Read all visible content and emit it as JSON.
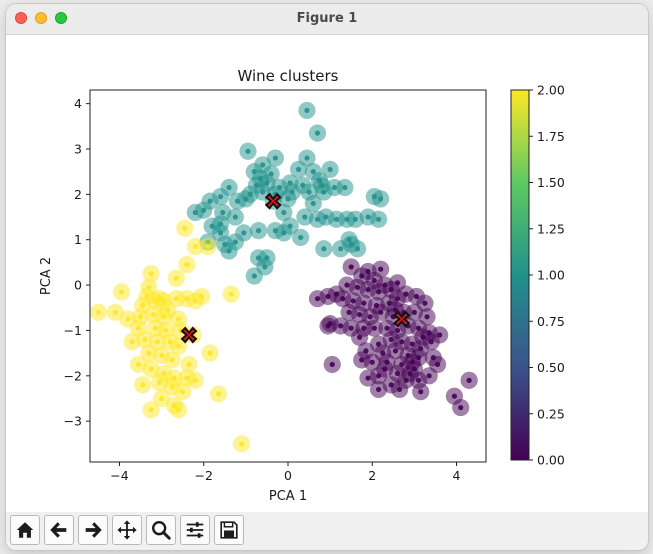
{
  "window": {
    "title": "Figure 1"
  },
  "toolbar": {
    "buttons": [
      {
        "name": "home-icon"
      },
      {
        "name": "back-arrow-icon"
      },
      {
        "name": "forward-arrow-icon"
      },
      {
        "name": "pan-icon"
      },
      {
        "name": "zoom-icon"
      },
      {
        "name": "configure-subplots-icon"
      },
      {
        "name": "save-icon"
      }
    ]
  },
  "chart_data": {
    "type": "scatter",
    "title": "Wine clusters",
    "xlabel": "PCA 1",
    "ylabel": "PCA 2",
    "xlim": [
      -4.7,
      4.7
    ],
    "ylim": [
      -3.9,
      4.3
    ],
    "xticks": [
      -4,
      -2,
      0,
      2,
      4
    ],
    "yticks": [
      -3,
      -2,
      -1,
      0,
      1,
      2,
      3,
      4
    ],
    "colormap": "viridis",
    "colorbar": {
      "min": 0.0,
      "max": 2.0,
      "ticks": [
        "0.00",
        "0.25",
        "0.50",
        "0.75",
        "1.00",
        "1.25",
        "1.50",
        "1.75",
        "2.00"
      ]
    },
    "colors": {
      "cluster_0": "#440154",
      "cluster_1": "#21918c",
      "cluster_2": "#fde725",
      "centroid": "#e8141a"
    },
    "centroids": [
      {
        "cluster": 0,
        "x": 2.7,
        "y": -0.75
      },
      {
        "cluster": 1,
        "x": -0.35,
        "y": 1.85
      },
      {
        "cluster": 2,
        "x": -2.35,
        "y": -1.1
      }
    ],
    "series": [
      {
        "cluster": 0,
        "points": [
          [
            1.5,
            0.4
          ],
          [
            1.9,
            0.3
          ],
          [
            2.2,
            0.35
          ],
          [
            1.75,
            0.2
          ],
          [
            2.05,
            0.1
          ],
          [
            2.3,
            0.0
          ],
          [
            1.4,
            0.0
          ],
          [
            1.65,
            -0.05
          ],
          [
            1.9,
            -0.1
          ],
          [
            2.15,
            -0.15
          ],
          [
            2.45,
            -0.1
          ],
          [
            1.15,
            -0.2
          ],
          [
            0.7,
            -0.3
          ],
          [
            0.95,
            -0.25
          ],
          [
            1.3,
            -0.3
          ],
          [
            1.55,
            -0.35
          ],
          [
            1.8,
            -0.4
          ],
          [
            2.1,
            -0.45
          ],
          [
            2.4,
            -0.4
          ],
          [
            2.6,
            -0.3
          ],
          [
            2.8,
            -0.2
          ],
          [
            3.05,
            -0.25
          ],
          [
            1.45,
            -0.6
          ],
          [
            1.7,
            -0.65
          ],
          [
            1.95,
            -0.7
          ],
          [
            2.2,
            -0.6
          ],
          [
            2.5,
            -0.7
          ],
          [
            2.75,
            -0.6
          ],
          [
            3.0,
            -0.6
          ],
          [
            3.3,
            -0.7
          ],
          [
            1.0,
            -0.85
          ],
          [
            1.25,
            -0.9
          ],
          [
            1.5,
            -0.95
          ],
          [
            1.8,
            -0.95
          ],
          [
            2.05,
            -0.95
          ],
          [
            2.35,
            -0.95
          ],
          [
            2.6,
            -1.0
          ],
          [
            2.85,
            -0.9
          ],
          [
            3.1,
            -0.95
          ],
          [
            3.35,
            -1.05
          ],
          [
            3.6,
            -1.1
          ],
          [
            3.4,
            -1.25
          ],
          [
            2.15,
            -1.3
          ],
          [
            2.45,
            -1.2
          ],
          [
            2.7,
            -1.25
          ],
          [
            2.95,
            -1.3
          ],
          [
            3.15,
            -1.4
          ],
          [
            1.85,
            -1.45
          ],
          [
            2.25,
            -1.5
          ],
          [
            2.55,
            -1.45
          ],
          [
            2.85,
            -1.55
          ],
          [
            3.1,
            -1.6
          ],
          [
            3.45,
            -1.6
          ],
          [
            2.0,
            -1.7
          ],
          [
            2.35,
            -1.7
          ],
          [
            2.7,
            -1.75
          ],
          [
            2.95,
            -1.7
          ],
          [
            1.05,
            -1.75
          ],
          [
            3.55,
            -1.75
          ],
          [
            2.3,
            -1.85
          ],
          [
            2.6,
            -1.95
          ],
          [
            2.9,
            -1.95
          ],
          [
            3.35,
            -2.0
          ],
          [
            1.9,
            -2.05
          ],
          [
            2.15,
            -2.0
          ],
          [
            2.8,
            -2.1
          ],
          [
            3.1,
            -2.1
          ],
          [
            4.3,
            -2.1
          ],
          [
            2.65,
            -2.3
          ],
          [
            3.15,
            -2.35
          ],
          [
            2.15,
            -2.3
          ],
          [
            3.95,
            -2.45
          ],
          [
            4.1,
            -2.7
          ],
          [
            2.45,
            -2.2
          ],
          [
            1.75,
            -1.65
          ],
          [
            3.0,
            -1.85
          ],
          [
            2.6,
            0.05
          ],
          [
            3.25,
            -0.4
          ],
          [
            0.95,
            -0.9
          ],
          [
            1.7,
            -1.15
          ],
          [
            2.55,
            -0.55
          ],
          [
            3.2,
            -1.15
          ]
        ]
      },
      {
        "cluster": 1,
        "points": [
          [
            0.45,
            3.85
          ],
          [
            0.7,
            3.35
          ],
          [
            -0.95,
            2.95
          ],
          [
            -0.3,
            2.8
          ],
          [
            0.45,
            2.8
          ],
          [
            -0.6,
            2.65
          ],
          [
            -0.8,
            2.5
          ],
          [
            -0.65,
            2.35
          ],
          [
            -0.4,
            2.45
          ],
          [
            0.25,
            2.55
          ],
          [
            0.6,
            2.5
          ],
          [
            1.0,
            2.55
          ],
          [
            -0.75,
            2.2
          ],
          [
            -0.5,
            2.25
          ],
          [
            -0.2,
            2.15
          ],
          [
            0.05,
            2.25
          ],
          [
            0.35,
            2.2
          ],
          [
            0.75,
            2.3
          ],
          [
            1.1,
            2.15
          ],
          [
            0.85,
            2.05
          ],
          [
            -1.4,
            2.15
          ],
          [
            -0.9,
            2.0
          ],
          [
            -0.6,
            2.05
          ],
          [
            -0.3,
            2.0
          ],
          [
            0.1,
            2.05
          ],
          [
            0.5,
            2.05
          ],
          [
            0.8,
            2.2
          ],
          [
            1.35,
            2.15
          ],
          [
            -1.6,
            1.95
          ],
          [
            -1.85,
            1.85
          ],
          [
            -1.2,
            1.85
          ],
          [
            -0.35,
            1.85
          ],
          [
            0.0,
            1.9
          ],
          [
            2.05,
            1.95
          ],
          [
            2.2,
            1.9
          ],
          [
            -2.0,
            1.65
          ],
          [
            -2.2,
            1.6
          ],
          [
            -1.55,
            1.6
          ],
          [
            -1.25,
            1.5
          ],
          [
            -1.6,
            1.35
          ],
          [
            -1.8,
            1.3
          ],
          [
            -1.6,
            1.15
          ],
          [
            0.7,
            1.45
          ],
          [
            0.9,
            1.5
          ],
          [
            1.15,
            1.45
          ],
          [
            1.4,
            1.45
          ],
          [
            1.6,
            1.45
          ],
          [
            1.9,
            1.5
          ],
          [
            2.15,
            1.45
          ],
          [
            -1.25,
            0.95
          ],
          [
            -1.5,
            0.9
          ],
          [
            -1.9,
            0.95
          ],
          [
            -1.05,
            1.15
          ],
          [
            -0.7,
            1.2
          ],
          [
            -0.3,
            1.2
          ],
          [
            0.05,
            1.3
          ],
          [
            0.3,
            1.05
          ],
          [
            0.85,
            0.8
          ],
          [
            1.25,
            0.8
          ],
          [
            1.5,
            0.9
          ],
          [
            1.65,
            0.8
          ],
          [
            -1.4,
            0.75
          ],
          [
            -0.5,
            0.6
          ],
          [
            -0.55,
            0.4
          ],
          [
            -0.7,
            0.6
          ],
          [
            -0.8,
            0.2
          ],
          [
            1.45,
            1.0
          ],
          [
            -0.1,
            1.15
          ],
          [
            0.4,
            1.5
          ],
          [
            -1.0,
            1.9
          ],
          [
            0.6,
            1.8
          ],
          [
            -0.1,
            1.6
          ]
        ]
      },
      {
        "cluster": 2,
        "points": [
          [
            -2.45,
            1.25
          ],
          [
            -2.4,
            0.45
          ],
          [
            -2.2,
            0.85
          ],
          [
            -1.9,
            0.85
          ],
          [
            -2.65,
            0.15
          ],
          [
            -3.25,
            0.25
          ],
          [
            -3.95,
            -0.15
          ],
          [
            -3.35,
            -0.25
          ],
          [
            -3.15,
            -0.35
          ],
          [
            -2.95,
            -0.35
          ],
          [
            -2.65,
            -0.3
          ],
          [
            -2.4,
            -0.3
          ],
          [
            -2.2,
            -0.35
          ],
          [
            -1.35,
            -0.2
          ],
          [
            -4.5,
            -0.6
          ],
          [
            -4.1,
            -0.6
          ],
          [
            -3.8,
            -0.75
          ],
          [
            -3.5,
            -0.7
          ],
          [
            -3.2,
            -0.65
          ],
          [
            -2.95,
            -0.7
          ],
          [
            -2.6,
            -0.75
          ],
          [
            -3.55,
            -0.95
          ],
          [
            -3.15,
            -0.95
          ],
          [
            -2.9,
            -1.0
          ],
          [
            -2.55,
            -1.0
          ],
          [
            -2.25,
            -1.1
          ],
          [
            -3.7,
            -1.25
          ],
          [
            -3.4,
            -1.2
          ],
          [
            -3.1,
            -1.25
          ],
          [
            -2.8,
            -1.25
          ],
          [
            -2.6,
            -1.35
          ],
          [
            -3.3,
            -1.5
          ],
          [
            -3.0,
            -1.55
          ],
          [
            -1.85,
            -1.5
          ],
          [
            -3.55,
            -1.75
          ],
          [
            -3.25,
            -1.85
          ],
          [
            -2.95,
            -1.95
          ],
          [
            -2.7,
            -2.05
          ],
          [
            -2.4,
            -2.05
          ],
          [
            -2.2,
            -2.1
          ],
          [
            -3.05,
            -2.15
          ],
          [
            -2.75,
            -2.25
          ],
          [
            -2.5,
            -2.35
          ],
          [
            -3.45,
            -2.2
          ],
          [
            -1.65,
            -2.4
          ],
          [
            -3.0,
            -2.5
          ],
          [
            -2.7,
            -2.65
          ],
          [
            -2.6,
            -2.75
          ],
          [
            -3.25,
            -2.75
          ],
          [
            -1.1,
            -3.5
          ],
          [
            -3.05,
            -0.3
          ],
          [
            -2.85,
            -0.55
          ],
          [
            -3.45,
            -0.45
          ],
          [
            -2.75,
            -1.65
          ],
          [
            -2.35,
            -1.75
          ],
          [
            -3.3,
            -0.05
          ],
          [
            -2.05,
            -0.25
          ]
        ]
      }
    ]
  }
}
